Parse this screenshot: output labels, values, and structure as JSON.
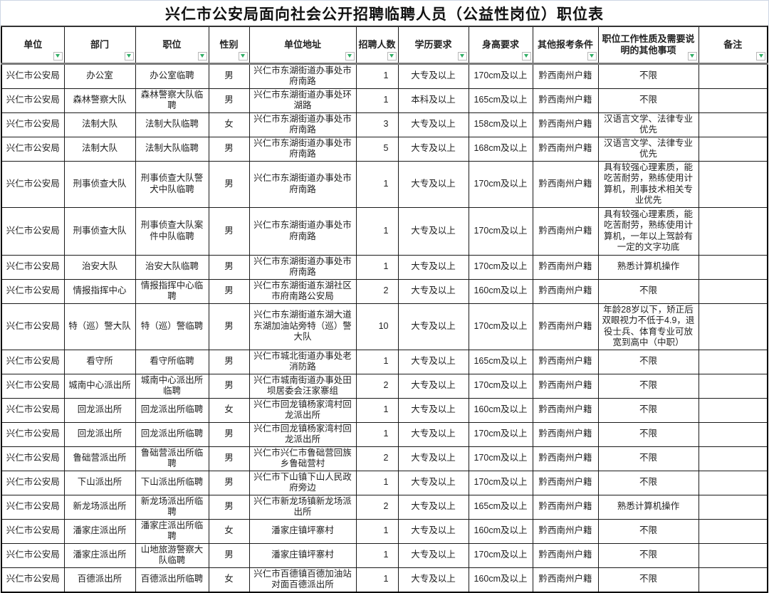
{
  "title": "兴仁市公安局面向社会公开招聘临聘人员（公益性岗位）职位表",
  "filter_icon_color": "#2fae64",
  "columns": [
    {
      "label": "单位"
    },
    {
      "label": "部门"
    },
    {
      "label": "职位"
    },
    {
      "label": "性别"
    },
    {
      "label": "单位地址"
    },
    {
      "label": "招聘人数"
    },
    {
      "label": "学历要求"
    },
    {
      "label": "身高要求"
    },
    {
      "label": "其他报考条件"
    },
    {
      "label": "职位工作性质及需要说明的其他事项"
    },
    {
      "label": "备注"
    }
  ],
  "rows": [
    [
      "兴仁市公安局",
      "办公室",
      "办公室临聘",
      "男",
      "兴仁市东湖街道办事处市府南路",
      "1",
      "大专及以上",
      "170cm及以上",
      "黔西南州户籍",
      "不限",
      ""
    ],
    [
      "兴仁市公安局",
      "森林警察大队",
      "森林警察大队临聘",
      "男",
      "兴仁市东湖街道办事处环湖路",
      "1",
      "本科及以上",
      "165cm及以上",
      "黔西南州户籍",
      "不限",
      ""
    ],
    [
      "兴仁市公安局",
      "法制大队",
      "法制大队临聘",
      "女",
      "兴仁市东湖街道办事处市府南路",
      "3",
      "大专及以上",
      "158cm及以上",
      "黔西南州户籍",
      "汉语言文学、法律专业优先",
      ""
    ],
    [
      "兴仁市公安局",
      "法制大队",
      "法制大队临聘",
      "男",
      "兴仁市东湖街道办事处市府南路",
      "5",
      "大专及以上",
      "168cm及以上",
      "黔西南州户籍",
      "汉语言文学、法律专业优先",
      ""
    ],
    [
      "兴仁市公安局",
      "刑事侦查大队",
      "刑事侦查大队警犬中队临聘",
      "男",
      "兴仁市东湖街道办事处市府南路",
      "1",
      "大专及以上",
      "170cm及以上",
      "黔西南州户籍",
      "具有较强心理素质，能吃苦耐劳，熟练使用计算机，刑事技术相关专业优先",
      ""
    ],
    [
      "兴仁市公安局",
      "刑事侦查大队",
      "刑事侦查大队案件中队临聘",
      "男",
      "兴仁市东湖街道办事处市府南路",
      "1",
      "大专及以上",
      "170cm及以上",
      "黔西南州户籍",
      "具有较强心理素质，能吃苦耐劳，熟练使用计算机，一年以上驾龄有一定的文字功底",
      ""
    ],
    [
      "兴仁市公安局",
      "治安大队",
      "治安大队临聘",
      "男",
      "兴仁市东湖街道办事处市府南路",
      "1",
      "大专及以上",
      "170cm及以上",
      "黔西南州户籍",
      "熟悉计算机操作",
      ""
    ],
    [
      "兴仁市公安局",
      "情报指挥中心",
      "情报指挥中心临聘",
      "男",
      "兴仁市东湖街道东湖社区市府南路公安局",
      "2",
      "大专及以上",
      "160cm及以上",
      "黔西南州户籍",
      "不限",
      ""
    ],
    [
      "兴仁市公安局",
      "特（巡）警大队",
      "特（巡）警临聘",
      "男",
      "兴仁市东湖街道东湖大道东湖加油站旁特（巡）警大队",
      "10",
      "大专及以上",
      "170cm及以上",
      "黔西南州户籍",
      "年龄28岁以下，矫正后双眼视力不低于4.9，退役士兵、体育专业可放宽到高中（中职）",
      ""
    ],
    [
      "兴仁市公安局",
      "看守所",
      "看守所临聘",
      "男",
      "兴仁市城北街道办事处老消防路",
      "1",
      "大专及以上",
      "165cm及以上",
      "黔西南州户籍",
      "不限",
      ""
    ],
    [
      "兴仁市公安局",
      "城南中心派出所",
      "城南中心派出所临聘",
      "男",
      "兴仁市城南街道办事处田坝居委会汪家寨组",
      "2",
      "大专及以上",
      "170cm及以上",
      "黔西南州户籍",
      "不限",
      ""
    ],
    [
      "兴仁市公安局",
      "回龙派出所",
      "回龙派出所临聘",
      "女",
      "兴仁市回龙镇杨家湾村回龙派出所",
      "1",
      "大专及以上",
      "160cm及以上",
      "黔西南州户籍",
      "不限",
      ""
    ],
    [
      "兴仁市公安局",
      "回龙派出所",
      "回龙派出所临聘",
      "男",
      "兴仁市回龙镇杨家湾村回龙派出所",
      "1",
      "大专及以上",
      "170cm及以上",
      "黔西南州户籍",
      "不限",
      ""
    ],
    [
      "兴仁市公安局",
      "鲁础营派出所",
      "鲁础营派出所临聘",
      "男",
      "兴仁市兴仁市鲁础营回族乡鲁础营村",
      "2",
      "大专及以上",
      "170cm及以上",
      "黔西南州户籍",
      "不限",
      ""
    ],
    [
      "兴仁市公安局",
      "下山派出所",
      "下山派出所临聘",
      "男",
      "兴仁市下山镇下山人民政府旁边",
      "1",
      "大专及以上",
      "170cm及以上",
      "黔西南州户籍",
      "不限",
      ""
    ],
    [
      "兴仁市公安局",
      "新龙场派出所",
      "新龙场派出所临聘",
      "男",
      "兴仁市新龙场镇新龙场派出所",
      "2",
      "大专及以上",
      "165cm及以上",
      "黔西南州户籍",
      "熟悉计算机操作",
      ""
    ],
    [
      "兴仁市公安局",
      "潘家庄派出所",
      "潘家庄派出所临聘",
      "女",
      "潘家庄镇坪寨村",
      "1",
      "大专及以上",
      "160cm及以上",
      "黔西南州户籍",
      "不限",
      ""
    ],
    [
      "兴仁市公安局",
      "潘家庄派出所",
      "山地旅游警察大队临聘",
      "男",
      "潘家庄镇坪寨村",
      "1",
      "大专及以上",
      "170cm及以上",
      "黔西南州户籍",
      "不限",
      ""
    ],
    [
      "兴仁市公安局",
      "百德派出所",
      "百德派出所临聘",
      "女",
      "兴仁市百德镇百德加油站对面百德派出所",
      "1",
      "大专及以上",
      "160cm及以上",
      "黔西南州户籍",
      "不限",
      ""
    ]
  ]
}
